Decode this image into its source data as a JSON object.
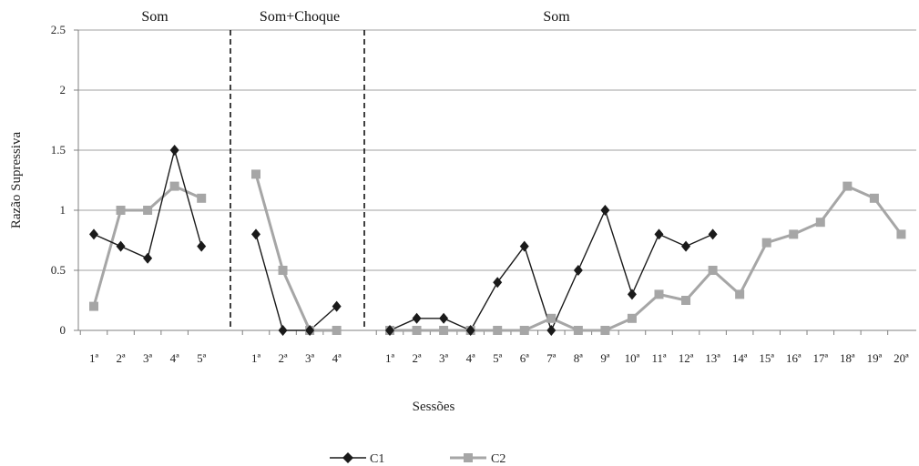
{
  "chart_data": {
    "type": "line",
    "xlabel": "Sessões",
    "ylabel": "Razão Supressiva",
    "ylim": [
      0,
      2.5
    ],
    "yticks": [
      "0",
      "0.5",
      "1",
      "1.5",
      "2",
      "2.5"
    ],
    "grid": "horizontal",
    "legend_position": "bottom",
    "phases": [
      {
        "label": "Som",
        "categories": [
          "1ª",
          "2ª",
          "3ª",
          "4ª",
          "5ª"
        ],
        "series": {
          "C1": [
            0.8,
            0.7,
            0.6,
            1.5,
            0.7
          ],
          "C2": [
            0.2,
            1.0,
            1.0,
            1.2,
            1.1
          ]
        }
      },
      {
        "label": "Som+Choque",
        "categories": [
          "1ª",
          "2ª",
          "3ª",
          "4ª"
        ],
        "series": {
          "C1": [
            0.8,
            0.0,
            0.0,
            0.2
          ],
          "C2": [
            1.3,
            0.5,
            0.0,
            0.0
          ]
        }
      },
      {
        "label": "Som",
        "categories": [
          "1ª",
          "2ª",
          "3ª",
          "4ª",
          "5ª",
          "6ª",
          "7ª",
          "8ª",
          "9ª",
          "10ª",
          "11ª",
          "12ª",
          "13ª",
          "14ª",
          "15ª",
          "16ª",
          "17ª",
          "18ª",
          "19ª",
          "20ª"
        ],
        "series": {
          "C1": [
            0.0,
            0.1,
            0.1,
            0.0,
            0.4,
            0.7,
            0.0,
            0.5,
            1.0,
            0.3,
            0.8,
            0.7,
            0.8
          ],
          "C2": [
            0.0,
            0.0,
            0.0,
            0.0,
            0.0,
            0.0,
            0.1,
            0.0,
            0.0,
            0.1,
            0.3,
            0.25,
            0.5,
            0.3,
            0.73,
            0.8,
            0.9,
            1.2,
            1.1,
            0.8
          ]
        }
      }
    ],
    "series_meta": [
      {
        "name": "C1",
        "color": "#1a1a1a",
        "marker": "diamond"
      },
      {
        "name": "C2",
        "color": "#a6a6a6",
        "marker": "square"
      }
    ]
  }
}
